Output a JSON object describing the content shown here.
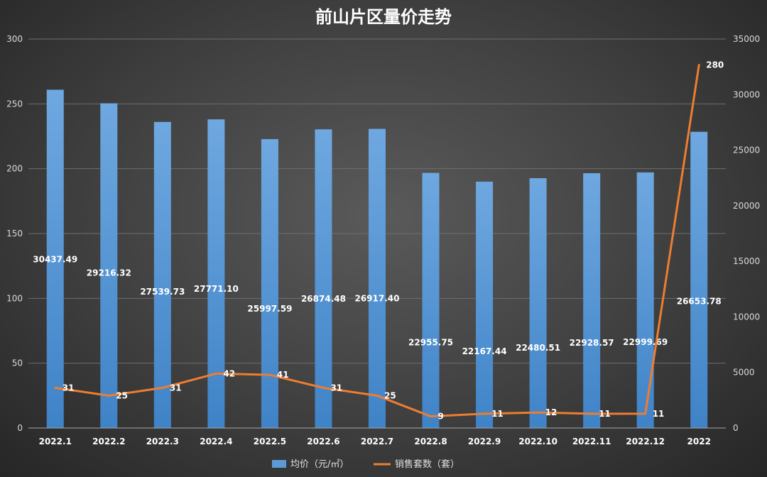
{
  "chart_data": {
    "type": "bar",
    "title": "前山片区量价走势",
    "categories": [
      "2022.1",
      "2022.2",
      "2022.3",
      "2022.4",
      "2022.5",
      "2022.6",
      "2022.7",
      "2022.8",
      "2022.9",
      "2022.10",
      "2022.11",
      "2022.12",
      "2022"
    ],
    "series": [
      {
        "name": "均价（元/㎡）",
        "type": "bar",
        "axis": "right",
        "color": "#5b9bd5",
        "values": [
          30437.49,
          29216.32,
          27539.73,
          27771.1,
          25997.59,
          26874.48,
          26917.4,
          22955.75,
          22167.44,
          22480.51,
          22928.57,
          22999.69,
          26653.78
        ],
        "labels": [
          "30437.49",
          "29216.32",
          "27539.73",
          "27771.10",
          "25997.59",
          "26874.48",
          "26917.40",
          "22955.75",
          "22167.44",
          "22480.51",
          "22928.57",
          "22999.69",
          "26653.78"
        ]
      },
      {
        "name": "销售套数（套）",
        "type": "line",
        "axis": "left",
        "color": "#ed7d31",
        "values": [
          31,
          25,
          31,
          42,
          41,
          31,
          25,
          9,
          11,
          12,
          11,
          11,
          280
        ],
        "labels": [
          "31",
          "25",
          "31",
          "42",
          "41",
          "31",
          "25",
          "9",
          "11",
          "12",
          "11",
          "11",
          "280"
        ]
      }
    ],
    "y_left": {
      "min": 0,
      "max": 300,
      "ticks": [
        "0",
        "50",
        "100",
        "150",
        "200",
        "250",
        "300"
      ]
    },
    "y_right": {
      "min": 0,
      "max": 35000,
      "ticks": [
        "0",
        "5000",
        "10000",
        "15000",
        "20000",
        "25000",
        "30000",
        "35000"
      ]
    },
    "grid": true,
    "legend_position": "bottom"
  }
}
